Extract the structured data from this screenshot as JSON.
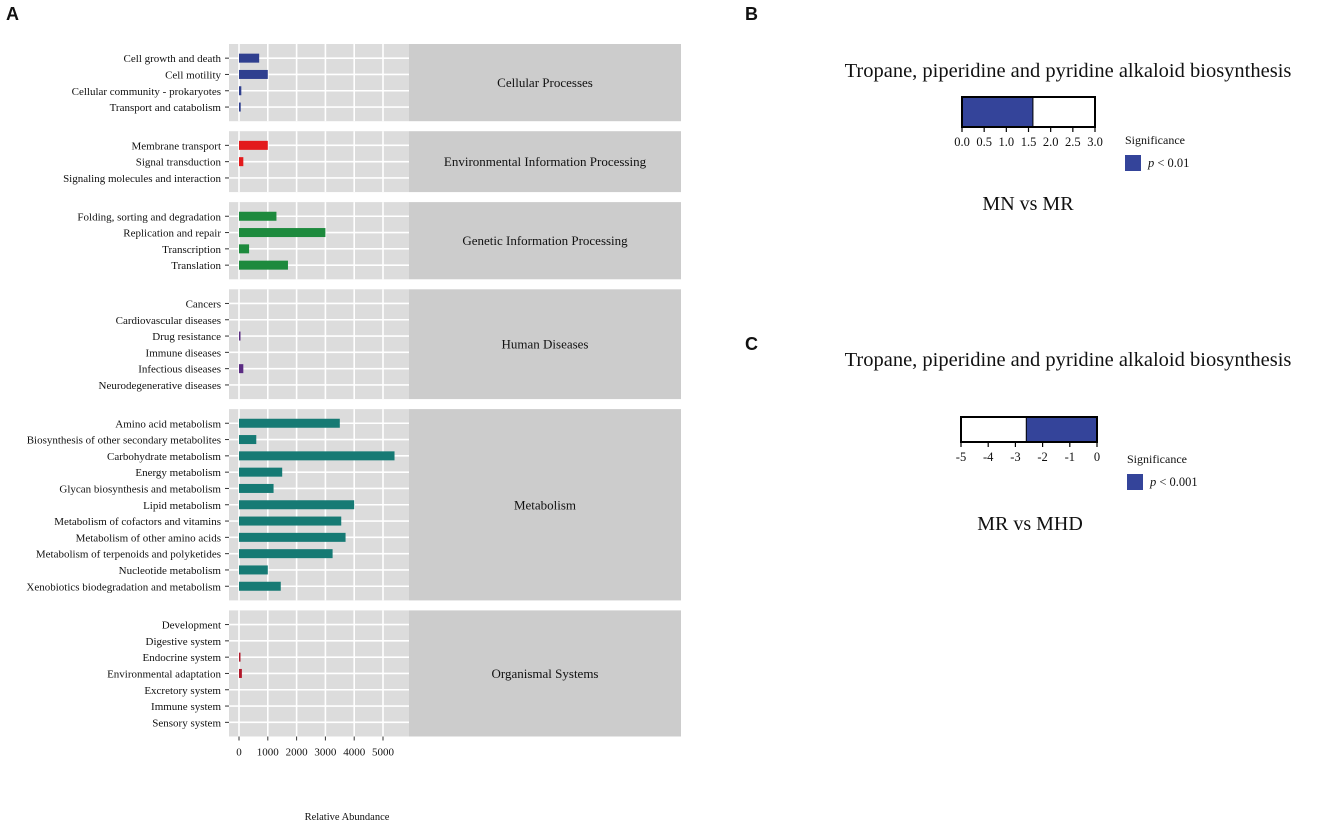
{
  "panel_labels": {
    "a": "A",
    "b": "B",
    "c": "C"
  },
  "colors": {
    "panel_bg": "#dcdcdc",
    "strip_bg": "#cccccc",
    "grid": "#ffffff",
    "blue": "#2f3f8f",
    "red": "#e31a1c",
    "green": "#1d8a3d",
    "purple": "#5b2c83",
    "teal": "#167a74",
    "darkred": "#b2182b",
    "sig_fill": "#34449a"
  },
  "chart_data": [
    {
      "id": "A",
      "type": "bar",
      "orientation": "horizontal",
      "xlabel": "Relative Abundance",
      "xticks": [
        0,
        1000,
        2000,
        3000,
        4000,
        5000
      ],
      "xtick_labels": [
        "0",
        "1000",
        "2000",
        "3000",
        "4000",
        "5000"
      ],
      "xlim": [
        -300,
        6000
      ],
      "groups": [
        {
          "name": "Cellular Processes",
          "color": "#2f3f8f",
          "categories": [
            "Cell growth and death",
            "Cell motility",
            "Cellular community - prokaryotes",
            "Transport and catabolism"
          ],
          "values": [
            700,
            1000,
            80,
            60
          ]
        },
        {
          "name": "Environmental Information Processing",
          "color": "#e31a1c",
          "categories": [
            "Membrane transport",
            "Signal transduction",
            "Signaling molecules and interaction"
          ],
          "values": [
            1000,
            150,
            0
          ]
        },
        {
          "name": "Genetic Information Processing",
          "color": "#1d8a3d",
          "categories": [
            "Folding, sorting and degradation",
            "Replication and repair",
            "Transcription",
            "Translation"
          ],
          "values": [
            1300,
            3000,
            350,
            1700
          ]
        },
        {
          "name": "Human Diseases",
          "color": "#5b2c83",
          "categories": [
            "Cancers",
            "Cardiovascular diseases",
            "Drug resistance",
            "Immune diseases",
            "Infectious diseases",
            "Neurodegenerative diseases"
          ],
          "values": [
            0,
            0,
            20,
            0,
            150,
            0
          ]
        },
        {
          "name": "Metabolism",
          "color": "#167a74",
          "categories": [
            "Amino acid metabolism",
            "Biosynthesis of other secondary metabolites",
            "Carbohydrate metabolism",
            "Energy metabolism",
            "Glycan biosynthesis and metabolism",
            "Lipid metabolism",
            "Metabolism of cofactors and vitamins",
            "Metabolism of other amino acids",
            "Metabolism of terpenoids and polyketides",
            "Nucleotide metabolism",
            "Xenobiotics biodegradation and metabolism"
          ],
          "values": [
            3500,
            600,
            5400,
            1500,
            1200,
            4000,
            3550,
            3700,
            3250,
            1000,
            1450
          ]
        },
        {
          "name": "Organismal Systems",
          "color": "#b2182b",
          "categories": [
            "Development",
            "Digestive system",
            "Endocrine system",
            "Environmental adaptation",
            "Excretory system",
            "Immune system",
            "Sensory system"
          ],
          "values": [
            0,
            0,
            20,
            100,
            0,
            0,
            0
          ]
        }
      ]
    },
    {
      "id": "B",
      "type": "bar",
      "orientation": "horizontal",
      "title": "Tropane, piperidine and pyridine alkaloid biosynthesis",
      "categories": [
        "Tropane, piperidine and pyridine alkaloid biosynthesis"
      ],
      "values": [
        1.6
      ],
      "xlim": [
        0,
        3
      ],
      "xticks": [
        0,
        0.5,
        1,
        1.5,
        2,
        2.5,
        3
      ],
      "xtick_labels": [
        "0.0",
        "0.5",
        "1.0",
        "1.5",
        "2.0",
        "2.5",
        "3.0"
      ],
      "legend_title": "Significance",
      "legend_p": "p",
      "legend_value": " < 0.01",
      "comparison": "MN vs MR"
    },
    {
      "id": "C",
      "type": "bar",
      "orientation": "horizontal",
      "title": "Tropane, piperidine and pyridine alkaloid biosynthesis",
      "categories": [
        "Tropane, piperidine and pyridine alkaloid biosynthesis"
      ],
      "values": [
        -2.6
      ],
      "xlim": [
        -5,
        0
      ],
      "xticks": [
        -5,
        -4,
        -3,
        -2,
        -1,
        0
      ],
      "xtick_labels": [
        "-5",
        "-4",
        "-3",
        "-2",
        "-1",
        "0"
      ],
      "legend_title": "Significance",
      "legend_p": "p",
      "legend_value": " < 0.001",
      "comparison": "MR vs MHD"
    }
  ]
}
